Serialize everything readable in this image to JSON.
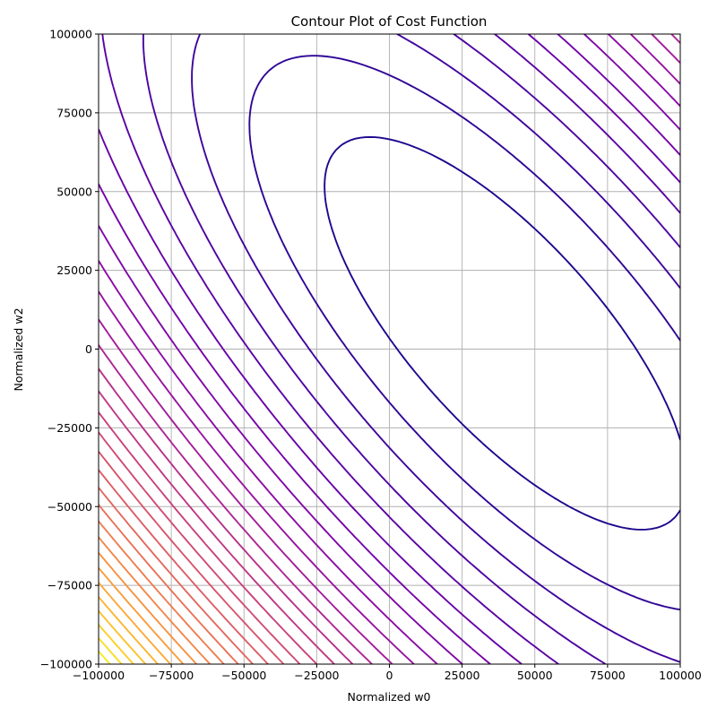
{
  "chart_data": {
    "type": "contour",
    "title": "Contour Plot of Cost Function",
    "xlabel": "Normalized w0",
    "ylabel": "Normalized w2",
    "xlim": [
      -100000,
      100000
    ],
    "ylim": [
      -100000,
      100000
    ],
    "x_ticks": [
      -100000,
      -75000,
      -50000,
      -25000,
      0,
      25000,
      50000,
      75000,
      100000
    ],
    "x_tick_labels": [
      "−100000",
      "−75000",
      "−50000",
      "−25000",
      "0",
      "25000",
      "50000",
      "75000",
      "100000"
    ],
    "y_ticks": [
      -100000,
      -75000,
      -50000,
      -25000,
      0,
      25000,
      50000,
      75000,
      100000
    ],
    "y_tick_labels": [
      "−100000",
      "−75000",
      "−50000",
      "−25000",
      "0",
      "25000",
      "50000",
      "75000",
      "100000"
    ],
    "grid": true,
    "colormap": "plasma",
    "minimum": {
      "w0": 40000,
      "w2": 5000
    },
    "levels": 30
  }
}
